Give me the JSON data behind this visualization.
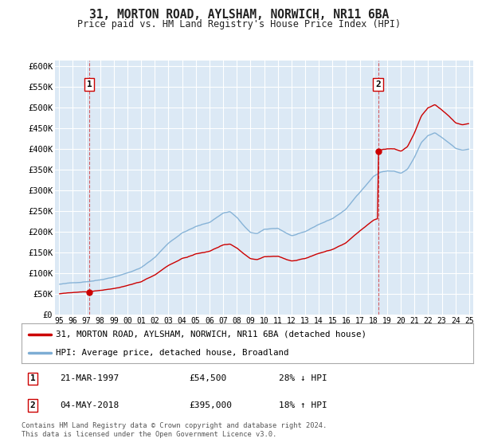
{
  "title": "31, MORTON ROAD, AYLSHAM, NORWICH, NR11 6BA",
  "subtitle": "Price paid vs. HM Land Registry's House Price Index (HPI)",
  "legend_label_red": "31, MORTON ROAD, AYLSHAM, NORWICH, NR11 6BA (detached house)",
  "legend_label_blue": "HPI: Average price, detached house, Broadland",
  "sale1_date": "21-MAR-1997",
  "sale1_price": "£54,500",
  "sale1_hpi": "28% ↓ HPI",
  "sale1_year": 1997.21,
  "sale1_value": 54500,
  "sale2_date": "04-MAY-2018",
  "sale2_price": "£395,000",
  "sale2_hpi": "18% ↑ HPI",
  "sale2_year": 2018.34,
  "sale2_value": 395000,
  "ylim": [
    0,
    615000
  ],
  "xlim": [
    1994.7,
    2025.3
  ],
  "yticks": [
    0,
    50000,
    100000,
    150000,
    200000,
    250000,
    300000,
    350000,
    400000,
    450000,
    500000,
    550000,
    600000
  ],
  "ytick_labels": [
    "£0",
    "£50K",
    "£100K",
    "£150K",
    "£200K",
    "£250K",
    "£300K",
    "£350K",
    "£400K",
    "£450K",
    "£500K",
    "£550K",
    "£600K"
  ],
  "plot_bg": "#dce9f5",
  "grid_color": "#ffffff",
  "red_color": "#cc0000",
  "blue_color": "#7dadd4",
  "footer": "Contains HM Land Registry data © Crown copyright and database right 2024.\nThis data is licensed under the Open Government Licence v3.0.",
  "xtick_years": [
    1995,
    1996,
    1997,
    1998,
    1999,
    2000,
    2001,
    2002,
    2003,
    2004,
    2005,
    2006,
    2007,
    2008,
    2009,
    2010,
    2011,
    2012,
    2013,
    2014,
    2015,
    2016,
    2017,
    2018,
    2019,
    2020,
    2021,
    2022,
    2023,
    2024,
    2025
  ]
}
